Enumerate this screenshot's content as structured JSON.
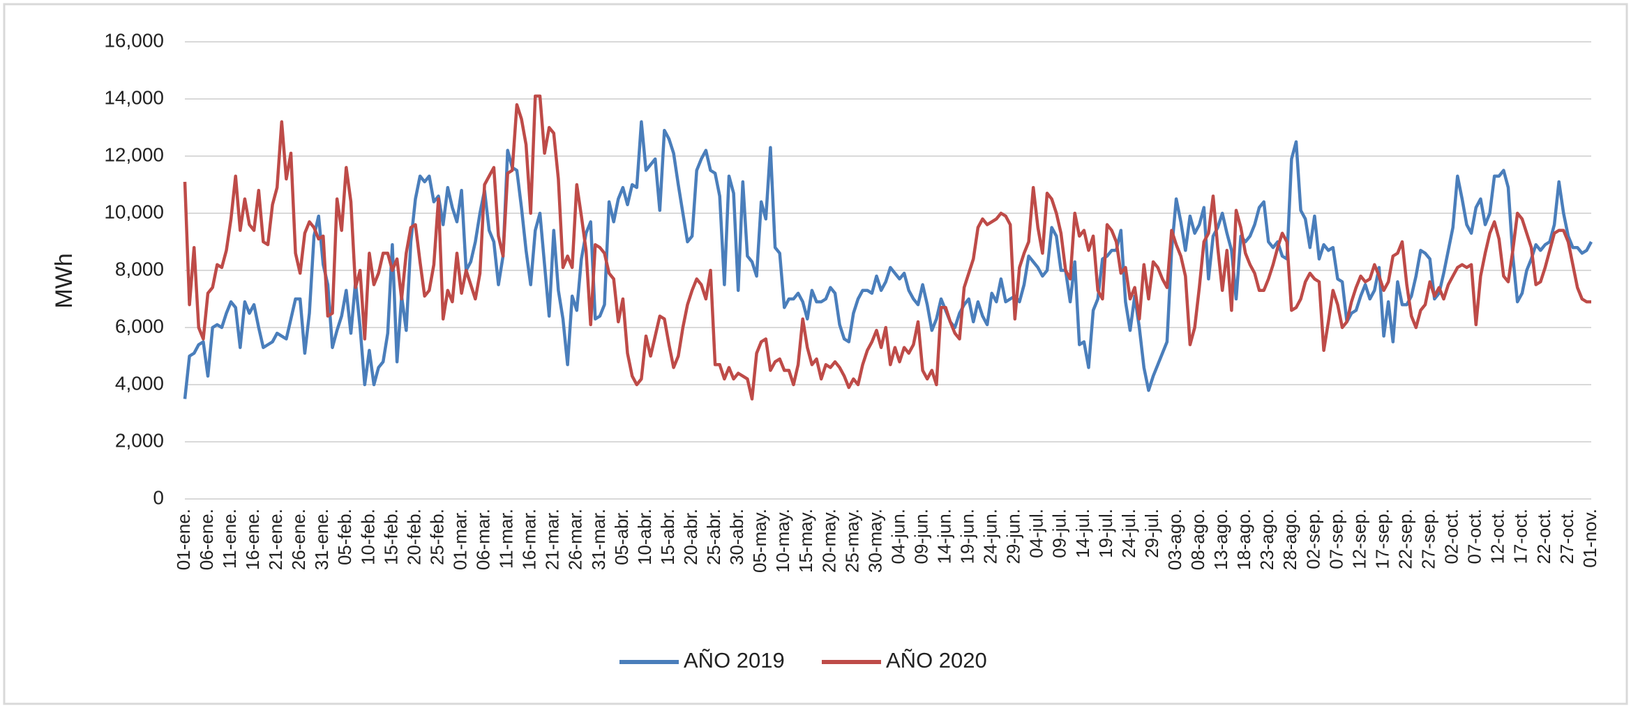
{
  "chart_data": {
    "type": "line",
    "y_label": "MWh",
    "categories": [
      "01-ene.",
      null,
      null,
      null,
      null,
      "06-ene.",
      null,
      null,
      null,
      null,
      "11-ene.",
      null,
      null,
      null,
      null,
      "16-ene.",
      null,
      null,
      null,
      null,
      "21-ene.",
      null,
      null,
      null,
      null,
      "26-ene.",
      null,
      null,
      null,
      null,
      "31-ene.",
      null,
      null,
      null,
      null,
      "05-feb.",
      null,
      null,
      null,
      null,
      "10-feb.",
      null,
      null,
      null,
      null,
      "15-feb.",
      null,
      null,
      null,
      null,
      "20-feb.",
      null,
      null,
      null,
      null,
      "25-feb.",
      null,
      null,
      null,
      null,
      "01-mar.",
      null,
      null,
      null,
      null,
      "06-mar.",
      null,
      null,
      null,
      null,
      "11-mar.",
      null,
      null,
      null,
      null,
      "16-mar.",
      null,
      null,
      null,
      null,
      "21-mar.",
      null,
      null,
      null,
      null,
      "26-mar.",
      null,
      null,
      null,
      null,
      "31-mar.",
      null,
      null,
      null,
      null,
      "05-abr.",
      null,
      null,
      null,
      null,
      "10-abr.",
      null,
      null,
      null,
      null,
      "15-abr.",
      null,
      null,
      null,
      null,
      "20-abr.",
      null,
      null,
      null,
      null,
      "25-abr.",
      null,
      null,
      null,
      null,
      "30-abr.",
      null,
      null,
      null,
      null,
      "05-may.",
      null,
      null,
      null,
      null,
      "10-may.",
      null,
      null,
      null,
      null,
      "15-may.",
      null,
      null,
      null,
      null,
      "20-may.",
      null,
      null,
      null,
      null,
      "25-may.",
      null,
      null,
      null,
      null,
      "30-may.",
      null,
      null,
      null,
      null,
      "04-jun.",
      null,
      null,
      null,
      null,
      "09-jun.",
      null,
      null,
      null,
      null,
      "14-jun.",
      null,
      null,
      null,
      null,
      "19-jun.",
      null,
      null,
      null,
      null,
      "24-jun.",
      null,
      null,
      null,
      null,
      "29-jun.",
      null,
      null,
      null,
      null,
      "04-jul.",
      null,
      null,
      null,
      null,
      "09-jul.",
      null,
      null,
      null,
      null,
      "14-jul.",
      null,
      null,
      null,
      null,
      "19-jul.",
      null,
      null,
      null,
      null,
      "24-jul.",
      null,
      null,
      null,
      null,
      "29-jul.",
      null,
      null,
      null,
      null,
      "03-ago.",
      null,
      null,
      null,
      null,
      "08-ago.",
      null,
      null,
      null,
      null,
      "13-ago.",
      null,
      null,
      null,
      null,
      "18-ago.",
      null,
      null,
      null,
      null,
      "23-ago.",
      null,
      null,
      null,
      null,
      "28-ago.",
      null,
      null,
      null,
      null,
      "02-sep.",
      null,
      null,
      null,
      null,
      "07-sep.",
      null,
      null,
      null,
      null,
      "12-sep.",
      null,
      null,
      null,
      null,
      "17-sep.",
      null,
      null,
      null,
      null,
      "22-sep.",
      null,
      null,
      null,
      null,
      "27-sep.",
      null,
      null,
      null,
      null,
      "02-oct.",
      null,
      null,
      null,
      null,
      "07-oct.",
      null,
      null,
      null,
      null,
      "12-oct.",
      null,
      null,
      null,
      null,
      "17-oct.",
      null,
      null,
      null,
      null,
      "22-oct.",
      null,
      null,
      null,
      null,
      "27-oct.",
      null,
      null,
      null,
      null,
      "01-nov."
    ],
    "series": [
      {
        "name": "AÑO 2019",
        "color": "#4a7ebb",
        "values": [
          3500,
          5000,
          5100,
          5400,
          5500,
          4300,
          6000,
          6100,
          6000,
          6500,
          6900,
          6700,
          5300,
          6900,
          6500,
          6800,
          6000,
          5300,
          5400,
          5500,
          5800,
          5700,
          5600,
          6300,
          7000,
          7000,
          5100,
          6500,
          9200,
          9900,
          8200,
          7500,
          5300,
          5900,
          6400,
          7300,
          5800,
          7600,
          6000,
          4000,
          5200,
          4000,
          4600,
          4800,
          5800,
          8900,
          4800,
          7100,
          5900,
          9000,
          10500,
          11300,
          11100,
          11300,
          10400,
          10600,
          9600,
          10900,
          10200,
          9700,
          10800,
          8000,
          8300,
          9000,
          10000,
          10800,
          9400,
          9000,
          7500,
          8500,
          12200,
          11600,
          11500,
          10200,
          8700,
          7500,
          9400,
          10000,
          8200,
          6400,
          9400,
          7300,
          6300,
          4700,
          7100,
          6600,
          8400,
          9300,
          9700,
          6300,
          6400,
          6800,
          10400,
          9700,
          10500,
          10900,
          10300,
          11000,
          10900,
          13200,
          11500,
          11700,
          11900,
          10100,
          12900,
          12600,
          12100,
          11000,
          10000,
          9000,
          9200,
          11500,
          11900,
          12200,
          11500,
          11400,
          10600,
          7500,
          11300,
          10700,
          7300,
          11100,
          8500,
          8300,
          7800,
          10400,
          9800,
          12300,
          8800,
          8600,
          6700,
          7000,
          7000,
          7200,
          6900,
          6300,
          7300,
          6900,
          6900,
          7000,
          7400,
          7200,
          6100,
          5600,
          5500,
          6500,
          7000,
          7300,
          7300,
          7200,
          7800,
          7300,
          7600,
          8100,
          7900,
          7700,
          7900,
          7300,
          7000,
          6800,
          7500,
          6800,
          5900,
          6300,
          7000,
          6600,
          6200,
          6000,
          6500,
          6800,
          7000,
          6200,
          6900,
          6400,
          6100,
          7200,
          6900,
          7700,
          6900,
          7000,
          7100,
          6900,
          7500,
          8500,
          8300,
          8100,
          7800,
          8000,
          9500,
          9200,
          8000,
          8000,
          6900,
          8300,
          5400,
          5500,
          4600,
          6600,
          7000,
          8400,
          8500,
          8700,
          8700,
          9400,
          6900,
          5900,
          7100,
          6000,
          4600,
          3800,
          4300,
          4700,
          5100,
          5500,
          8700,
          10500,
          9700,
          8700,
          9900,
          9300,
          9600,
          10200,
          7700,
          9200,
          9500,
          10000,
          9300,
          8700,
          7000,
          9200,
          9000,
          9200,
          9600,
          10200,
          10400,
          9000,
          8800,
          9000,
          8500,
          8400,
          11900,
          12500,
          10100,
          9800,
          8800,
          9900,
          8400,
          8900,
          8700,
          8800,
          7700,
          7600,
          6200,
          6500,
          6600,
          7100,
          7500,
          7000,
          7300,
          8100,
          5700,
          6900,
          5500,
          7600,
          6800,
          6800,
          7100,
          7800,
          8700,
          8600,
          8400,
          7000,
          7200,
          7900,
          8700,
          9500,
          11300,
          10500,
          9600,
          9300,
          10200,
          10500,
          9600,
          10000,
          11300,
          11300,
          11500,
          10900,
          8500,
          6900,
          7200,
          8000,
          8400,
          8900,
          8700,
          8900,
          9000,
          9600,
          11100,
          10000,
          9200,
          8800,
          8800,
          8600,
          8700,
          9000
        ]
      },
      {
        "name": "AÑO 2020",
        "color": "#be4b48",
        "values": [
          11100,
          6800,
          8800,
          6000,
          5600,
          7200,
          7400,
          8200,
          8100,
          8700,
          9800,
          11300,
          9400,
          10500,
          9600,
          9400,
          10800,
          9000,
          8900,
          10300,
          10900,
          13200,
          11200,
          12100,
          8600,
          7900,
          9300,
          9700,
          9500,
          9100,
          9200,
          6400,
          6500,
          10500,
          9400,
          11600,
          10400,
          7400,
          8000,
          5600,
          8600,
          7500,
          7900,
          8600,
          8600,
          8000,
          8400,
          7000,
          8600,
          9500,
          9600,
          8300,
          7100,
          7300,
          8200,
          10500,
          6300,
          7300,
          6900,
          8600,
          7200,
          8000,
          7500,
          7000,
          7900,
          11000,
          11300,
          11600,
          9200,
          8500,
          11400,
          11500,
          13800,
          13300,
          12400,
          10000,
          14100,
          14100,
          12100,
          13000,
          12800,
          11200,
          8100,
          8500,
          8100,
          11000,
          9900,
          8700,
          6100,
          8900,
          8800,
          8600,
          7900,
          7700,
          6200,
          7000,
          5100,
          4300,
          4000,
          4200,
          5700,
          5000,
          5700,
          6400,
          6300,
          5400,
          4600,
          5000,
          6000,
          6800,
          7300,
          7700,
          7500,
          7000,
          8000,
          4700,
          4700,
          4200,
          4600,
          4200,
          4400,
          4300,
          4200,
          3500,
          5100,
          5500,
          5600,
          4500,
          4800,
          4900,
          4500,
          4500,
          4000,
          4700,
          6300,
          5300,
          4700,
          4900,
          4200,
          4700,
          4600,
          4800,
          4600,
          4300,
          3900,
          4200,
          4000,
          4700,
          5200,
          5500,
          5900,
          5300,
          6000,
          4700,
          5300,
          4800,
          5300,
          5100,
          5400,
          6200,
          4500,
          4200,
          4500,
          4000,
          6700,
          6700,
          6200,
          5800,
          5600,
          7400,
          7900,
          8400,
          9500,
          9800,
          9600,
          9700,
          9800,
          10000,
          9900,
          9600,
          6300,
          8100,
          8600,
          9000,
          10900,
          9500,
          8600,
          10700,
          10500,
          10000,
          9300,
          8000,
          7700,
          10000,
          9200,
          9400,
          8700,
          9200,
          7300,
          7000,
          9600,
          9400,
          9000,
          7900,
          8100,
          7000,
          7400,
          6300,
          8200,
          7000,
          8300,
          8100,
          7700,
          7400,
          9400,
          8900,
          8500,
          7800,
          5400,
          6000,
          7400,
          9000,
          9300,
          10600,
          8800,
          7300,
          8700,
          6600,
          10100,
          9500,
          8600,
          8200,
          7900,
          7300,
          7300,
          7700,
          8200,
          8800,
          9300,
          9000,
          6600,
          6700,
          7000,
          7600,
          7900,
          7700,
          7600,
          5200,
          6200,
          7300,
          6800,
          6000,
          6200,
          6900,
          7400,
          7800,
          7600,
          7700,
          8200,
          7800,
          7300,
          7600,
          8500,
          8600,
          9000,
          7500,
          6400,
          6000,
          6600,
          6800,
          7600,
          7100,
          7400,
          7000,
          7500,
          7800,
          8100,
          8200,
          8100,
          8200,
          6100,
          7800,
          8600,
          9300,
          9700,
          9100,
          7800,
          7600,
          8700,
          10000,
          9800,
          9300,
          8800,
          7500,
          7600,
          8100,
          8700,
          9300,
          9400,
          9400,
          9000,
          8200,
          7400,
          7000,
          6900,
          6900
        ]
      }
    ],
    "ylim": [
      0,
      16000
    ],
    "yticks": [
      0,
      {
        "value": 2000,
        "label": "2,000"
      },
      {
        "value": 4000,
        "label": "4,000"
      },
      {
        "value": 6000,
        "label": "6,000"
      },
      {
        "value": 8000,
        "label": "8,000"
      },
      {
        "value": 10000,
        "label": "10,000"
      },
      {
        "value": 12000,
        "label": "12,000"
      },
      {
        "value": 14000,
        "label": "14,000"
      },
      {
        "value": 16000,
        "label": "16,000"
      }
    ],
    "grid": true,
    "legend": "bottom"
  }
}
